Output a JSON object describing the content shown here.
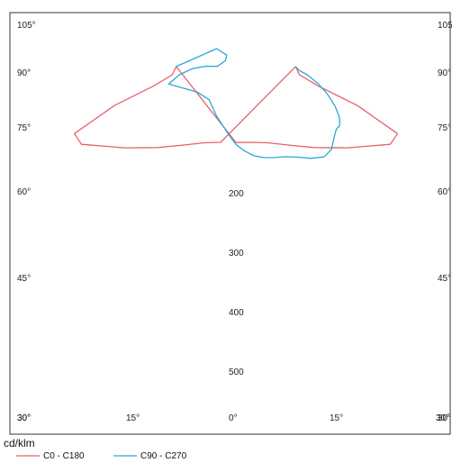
{
  "chart_data": {
    "type": "polar",
    "unit_label": "cd/klm",
    "angle_labels": {
      "left": [
        "105°",
        "90°",
        "75°",
        "60°",
        "45°",
        "30°"
      ],
      "right": [
        "105°",
        "90°",
        "75°",
        "60°",
        "45°",
        "30°"
      ],
      "bottom": [
        "30°",
        "15°",
        "0°",
        "15°",
        "30°"
      ]
    },
    "radial_labels": [
      "200",
      "300",
      "400",
      "500"
    ],
    "series": [
      {
        "name": "C0 - C180",
        "color": "#e8606b",
        "points": [
          [
            0,
            292
          ],
          [
            10,
            296
          ],
          [
            20,
            312
          ],
          [
            30,
            350
          ],
          [
            40,
            410
          ],
          [
            50,
            490
          ],
          [
            60,
            600
          ],
          [
            65,
            600
          ],
          [
            72,
            430
          ],
          [
            80,
            282
          ],
          [
            90,
            214
          ],
          [
            100,
            204
          ],
          [
            -10,
            296
          ],
          [
            -20,
            312
          ],
          [
            -30,
            350
          ],
          [
            -40,
            410
          ],
          [
            -50,
            490
          ],
          [
            -60,
            600
          ],
          [
            -65,
            600
          ],
          [
            -72,
            430
          ],
          [
            -80,
            282
          ],
          [
            -90,
            214
          ],
          [
            -100,
            204
          ]
        ]
      },
      {
        "name": "C90 - C270",
        "color": "#29a8d8",
        "points": [
          [
            -100,
            204
          ],
          [
            -150,
            130
          ],
          [
            -160,
            90
          ],
          [
            -150,
            70
          ],
          [
            -120,
            72
          ],
          [
            -110,
            108
          ],
          [
            -100,
            150
          ],
          [
            -90,
            190
          ],
          [
            -80,
            230
          ],
          [
            -60,
            150
          ],
          [
            -40,
            140
          ],
          [
            -20,
            190
          ],
          [
            -5,
            262
          ],
          [
            0,
            300
          ],
          [
            5,
            330
          ],
          [
            10,
            355
          ],
          [
            15,
            370
          ],
          [
            20,
            380
          ],
          [
            25,
            390
          ],
          [
            30,
            410
          ],
          [
            35,
            440
          ],
          [
            40,
            462
          ],
          [
            45,
            455
          ],
          [
            50,
            430
          ],
          [
            55,
            412
          ],
          [
            58,
            412
          ],
          [
            62,
            395
          ],
          [
            68,
            360
          ],
          [
            75,
            318
          ],
          [
            82,
            280
          ],
          [
            90,
            240
          ],
          [
            95,
            214
          ],
          [
            100,
            204
          ]
        ]
      }
    ]
  }
}
